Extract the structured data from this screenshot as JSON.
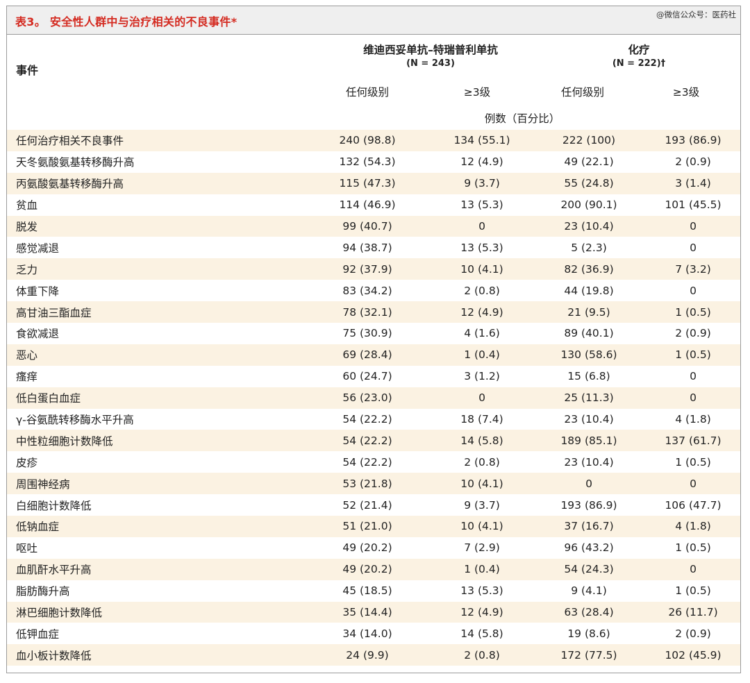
{
  "title": "表3。 安全性人群中与治疗相关的不良事件*",
  "watermark": "@微信公众号：医药社",
  "header": {
    "event_label": "事件",
    "group1_name": "维迪西妥单抗–特瑞普利单抗",
    "group1_n": "(N = 243)",
    "group2_name": "化疗",
    "group2_n": "(N = 222)†",
    "any_grade": "任何级别",
    "grade3": "≥3级",
    "unit": "例数（百分比）"
  },
  "rows": [
    {
      "event": "任何治疗相关不良事件",
      "g1_any": "240 (98.8)",
      "g1_g3": "134 (55.1)",
      "g2_any": "222 (100)",
      "g2_g3": "193 (86.9)"
    },
    {
      "event": "天冬氨酸氨基转移酶升高",
      "g1_any": "132 (54.3)",
      "g1_g3": "12 (4.9)",
      "g2_any": "49 (22.1)",
      "g2_g3": "2 (0.9)"
    },
    {
      "event": "丙氨酸氨基转移酶升高",
      "g1_any": "115 (47.3)",
      "g1_g3": "9 (3.7)",
      "g2_any": "55 (24.8)",
      "g2_g3": "3 (1.4)"
    },
    {
      "event": "贫血",
      "g1_any": "114 (46.9)",
      "g1_g3": "13 (5.3)",
      "g2_any": "200 (90.1)",
      "g2_g3": "101 (45.5)"
    },
    {
      "event": "脱发",
      "g1_any": "99 (40.7)",
      "g1_g3": "0",
      "g2_any": "23 (10.4)",
      "g2_g3": "0"
    },
    {
      "event": "感觉减退",
      "g1_any": "94 (38.7)",
      "g1_g3": "13 (5.3)",
      "g2_any": "5 (2.3)",
      "g2_g3": "0"
    },
    {
      "event": "乏力",
      "g1_any": "92 (37.9)",
      "g1_g3": "10 (4.1)",
      "g2_any": "82 (36.9)",
      "g2_g3": "7 (3.2)"
    },
    {
      "event": "体重下降",
      "g1_any": "83 (34.2)",
      "g1_g3": "2 (0.8)",
      "g2_any": "44 (19.8)",
      "g2_g3": "0"
    },
    {
      "event": "高甘油三酯血症",
      "g1_any": "78 (32.1)",
      "g1_g3": "12 (4.9)",
      "g2_any": "21 (9.5)",
      "g2_g3": "1 (0.5)"
    },
    {
      "event": "食欲减退",
      "g1_any": "75 (30.9)",
      "g1_g3": "4 (1.6)",
      "g2_any": "89 (40.1)",
      "g2_g3": "2 (0.9)"
    },
    {
      "event": "恶心",
      "g1_any": "69 (28.4)",
      "g1_g3": "1 (0.4)",
      "g2_any": "130 (58.6)",
      "g2_g3": "1 (0.5)"
    },
    {
      "event": "瘙痒",
      "g1_any": "60 (24.7)",
      "g1_g3": "3 (1.2)",
      "g2_any": "15 (6.8)",
      "g2_g3": "0"
    },
    {
      "event": "低白蛋白血症",
      "g1_any": "56 (23.0)",
      "g1_g3": "0",
      "g2_any": "25 (11.3)",
      "g2_g3": "0"
    },
    {
      "event": "γ-谷氨酰转移酶水平升高",
      "g1_any": "54 (22.2)",
      "g1_g3": "18 (7.4)",
      "g2_any": "23 (10.4)",
      "g2_g3": "4 (1.8)"
    },
    {
      "event": "中性粒细胞计数降低",
      "g1_any": "54 (22.2)",
      "g1_g3": "14 (5.8)",
      "g2_any": "189 (85.1)",
      "g2_g3": "137 (61.7)"
    },
    {
      "event": "皮疹",
      "g1_any": "54 (22.2)",
      "g1_g3": "2 (0.8)",
      "g2_any": "23 (10.4)",
      "g2_g3": "1 (0.5)"
    },
    {
      "event": "周围神经病",
      "g1_any": "53 (21.8)",
      "g1_g3": "10 (4.1)",
      "g2_any": "0",
      "g2_g3": "0"
    },
    {
      "event": "白细胞计数降低",
      "g1_any": "52 (21.4)",
      "g1_g3": "9 (3.7)",
      "g2_any": "193 (86.9)",
      "g2_g3": "106 (47.7)"
    },
    {
      "event": "低钠血症",
      "g1_any": "51 (21.0)",
      "g1_g3": "10 (4.1)",
      "g2_any": "37 (16.7)",
      "g2_g3": "4 (1.8)"
    },
    {
      "event": "呕吐",
      "g1_any": "49 (20.2)",
      "g1_g3": "7 (2.9)",
      "g2_any": "96 (43.2)",
      "g2_g3": "1 (0.5)"
    },
    {
      "event": "血肌酐水平升高",
      "g1_any": "49 (20.2)",
      "g1_g3": "1 (0.4)",
      "g2_any": "54 (24.3)",
      "g2_g3": "0"
    },
    {
      "event": "脂肪酶升高",
      "g1_any": "45 (18.5)",
      "g1_g3": "13 (5.3)",
      "g2_any": "9 (4.1)",
      "g2_g3": "1 (0.5)"
    },
    {
      "event": "淋巴细胞计数降低",
      "g1_any": "35 (14.4)",
      "g1_g3": "12 (4.9)",
      "g2_any": "63 (28.4)",
      "g2_g3": "26 (11.7)"
    },
    {
      "event": "低钾血症",
      "g1_any": "34 (14.0)",
      "g1_g3": "14 (5.8)",
      "g2_any": "19 (8.6)",
      "g2_g3": "2 (0.9)"
    },
    {
      "event": "血小板计数降低",
      "g1_any": "24 (9.9)",
      "g1_g3": "2 (0.8)",
      "g2_any": "172 (77.5)",
      "g2_g3": "102 (45.9)"
    }
  ]
}
